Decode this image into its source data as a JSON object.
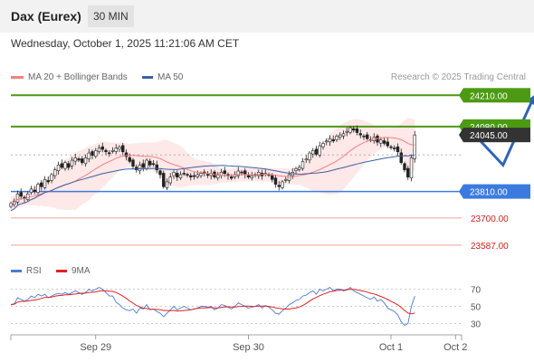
{
  "header": {
    "instrument": "Dax (Eurex)",
    "timeframe": "30 MIN"
  },
  "datetime": "Wednesday, October 1, 2025 11:21:06 AM CET",
  "copyright": "Research © 2025 Trading Central",
  "colors": {
    "resistance": "#4c9a12",
    "support": "#3b7be0",
    "target": "#f0a0a0",
    "current": "#333333",
    "ma20": "#f08080",
    "bbands": "#fde0e0",
    "ma50": "#3d5fa6",
    "rsi": "#4a7bd6",
    "rsi_ma": "#dd2222",
    "arrow": "#2f64b4"
  },
  "chart_data": [
    {
      "type": "candlestick",
      "legend": [
        {
          "name": "MA 20 + Bollinger Bands",
          "color": "#f08080"
        },
        {
          "name": "MA 50",
          "color": "#3d5fa6"
        }
      ],
      "ylim": [
        23530,
        24260
      ],
      "x_ticks": [
        "Sep 29",
        "Sep 30",
        "Oct 1",
        "Oct 2"
      ],
      "x_tick_index": [
        25,
        70,
        112,
        131
      ],
      "levels": [
        {
          "value": 24210,
          "label": "24210.00",
          "kind": "resistance"
        },
        {
          "value": 24080,
          "label": "24080.00",
          "kind": "resistance"
        },
        {
          "value": 24045,
          "label": "24045.00",
          "kind": "current"
        },
        {
          "value": 23810,
          "label": "23810.00",
          "kind": "support"
        },
        {
          "value": 23700,
          "label": "23700.00",
          "kind": "target"
        },
        {
          "value": 23587,
          "label": "23587.00",
          "kind": "target"
        }
      ],
      "forecast": [
        {
          "i": 137,
          "v": 24040
        },
        {
          "i": 145,
          "v": 23920
        },
        {
          "i": 154,
          "v": 24200
        }
      ],
      "closes": [
        23760,
        23770,
        23800,
        23790,
        23780,
        23800,
        23820,
        23810,
        23840,
        23830,
        23860,
        23850,
        23880,
        23900,
        23920,
        23910,
        23930,
        23910,
        23940,
        23950,
        23940,
        23930,
        23950,
        23970,
        23960,
        23980,
        23990,
        23985,
        23975,
        23970,
        23980,
        23990,
        23995,
        23975,
        23955,
        23935,
        23915,
        23900,
        23920,
        23910,
        23940,
        23920,
        23925,
        23900,
        23880,
        23830,
        23850,
        23870,
        23890,
        23870,
        23880,
        23885,
        23880,
        23870,
        23875,
        23880,
        23885,
        23885,
        23880,
        23885,
        23870,
        23880,
        23890,
        23885,
        23875,
        23865,
        23880,
        23895,
        23890,
        23880,
        23870,
        23875,
        23880,
        23890,
        23875,
        23885,
        23880,
        23860,
        23840,
        23830,
        23850,
        23860,
        23880,
        23890,
        23905,
        23910,
        23935,
        23945,
        23970,
        23980,
        23965,
        24000,
        24010,
        24020,
        24030,
        24020,
        24040,
        24045,
        24050,
        24060,
        24075,
        24065,
        24055,
        24045,
        24040,
        24030,
        24025,
        24035,
        24015,
        24025,
        24010,
        24000,
        23995,
        23990,
        23975,
        23930,
        23900,
        23870,
        23950,
        24045
      ]
    },
    {
      "type": "line",
      "legend": [
        {
          "name": "RSI",
          "color": "#4a7bd6"
        },
        {
          "name": "9MA",
          "color": "#dd2222"
        }
      ],
      "ylim": [
        20,
        80
      ],
      "y_ticks": [
        70,
        50,
        30
      ],
      "rsi": [
        52,
        53,
        60,
        58,
        56,
        58,
        62,
        60,
        64,
        62,
        64,
        60,
        62,
        64,
        65,
        64,
        66,
        64,
        66,
        68,
        66,
        64,
        66,
        70,
        68,
        70,
        72,
        70,
        66,
        62,
        62,
        55,
        52,
        48,
        46,
        45,
        47,
        42,
        48,
        47,
        52,
        46,
        47,
        44,
        42,
        38,
        42,
        46,
        50,
        46,
        48,
        50,
        48,
        46,
        47,
        48,
        50,
        50,
        49,
        50,
        46,
        48,
        52,
        51,
        49,
        47,
        50,
        54,
        52,
        50,
        48,
        49,
        50,
        52,
        48,
        51,
        49,
        46,
        42,
        41,
        45,
        48,
        52,
        54,
        57,
        58,
        62,
        63,
        66,
        68,
        64,
        70,
        68,
        70,
        72,
        68,
        70,
        70,
        68,
        69,
        72,
        68,
        66,
        64,
        62,
        60,
        58,
        61,
        56,
        58,
        54,
        48,
        46,
        44,
        40,
        32,
        28,
        30,
        50,
        62
      ]
    }
  ]
}
